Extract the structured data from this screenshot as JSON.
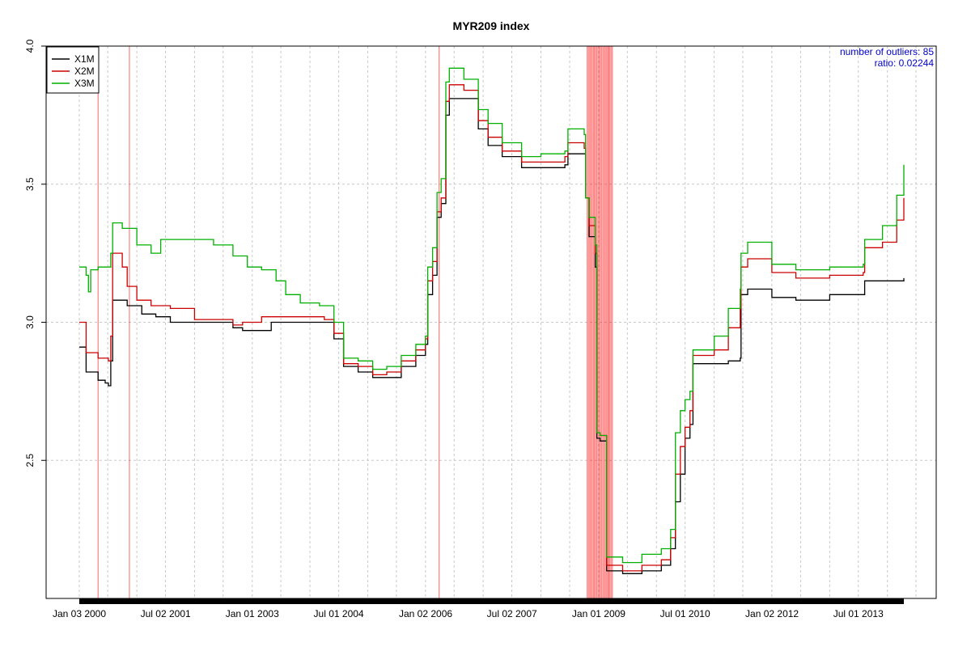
{
  "chart_data": {
    "type": "line",
    "title": "MYR209 index",
    "xlabel": "",
    "ylabel": "",
    "ylim": [
      2.0,
      4.0
    ],
    "y_ticks": [
      2.5,
      3.0,
      3.5,
      4.0
    ],
    "y_tick_labels": [
      "2.5",
      "3.0",
      "3.5",
      "4.0"
    ],
    "x_range": [
      "2000-01-03",
      "2014-04-15"
    ],
    "x_ticks": [
      {
        "date": "2000-01-03",
        "label": "Jan 03 2000"
      },
      {
        "date": "2001-07-02",
        "label": "Jul 02 2001"
      },
      {
        "date": "2003-01-01",
        "label": "Jan 01 2003"
      },
      {
        "date": "2004-07-01",
        "label": "Jul 01 2004"
      },
      {
        "date": "2006-01-02",
        "label": "Jan 02 2006"
      },
      {
        "date": "2007-07-02",
        "label": "Jul 02 2007"
      },
      {
        "date": "2009-01-01",
        "label": "Jan 01 2009"
      },
      {
        "date": "2010-07-01",
        "label": "Jul 01 2010"
      },
      {
        "date": "2012-01-02",
        "label": "Jan 02 2012"
      },
      {
        "date": "2013-07-01",
        "label": "Jul 01 2013"
      }
    ],
    "grid": true,
    "legend_position": "top-left",
    "annotation": {
      "line1": "number of outliers:  85",
      "line2": "ratio:  0.02244",
      "color": "#0000cc"
    },
    "outlier_color": "#ff0000",
    "outlier_dates": [
      "2000-05-01",
      "2000-11-15",
      "2006-03-28",
      "2008-10-20",
      "2008-10-28",
      "2008-11-05",
      "2008-11-12",
      "2008-11-20",
      "2008-11-28",
      "2008-12-05",
      "2008-12-12",
      "2008-12-20",
      "2008-12-28",
      "2009-01-05",
      "2009-01-12",
      "2009-01-20",
      "2009-01-28",
      "2009-02-05",
      "2009-02-12",
      "2009-02-20",
      "2009-02-28",
      "2009-03-05",
      "2009-03-12",
      "2009-03-20",
      "2009-03-28"
    ],
    "series": [
      {
        "name": "X1M",
        "color": "#000000",
        "points": [
          [
            "2000-01-03",
            2.91
          ],
          [
            "2000-02-15",
            2.82
          ],
          [
            "2000-05-01",
            2.79
          ],
          [
            "2000-06-15",
            2.78
          ],
          [
            "2000-07-05",
            2.77
          ],
          [
            "2000-07-20",
            2.86
          ],
          [
            "2000-08-01",
            3.08
          ],
          [
            "2000-11-01",
            3.06
          ],
          [
            "2001-02-01",
            3.03
          ],
          [
            "2001-05-01",
            3.02
          ],
          [
            "2001-08-01",
            3.0
          ],
          [
            "2002-09-01",
            2.98
          ],
          [
            "2002-11-01",
            2.97
          ],
          [
            "2003-05-01",
            3.0
          ],
          [
            "2004-04-01",
            3.0
          ],
          [
            "2004-06-01",
            2.94
          ],
          [
            "2004-08-01",
            2.84
          ],
          [
            "2004-11-01",
            2.82
          ],
          [
            "2005-02-01",
            2.8
          ],
          [
            "2005-05-01",
            2.8
          ],
          [
            "2005-08-01",
            2.84
          ],
          [
            "2005-11-01",
            2.88
          ],
          [
            "2006-01-01",
            2.92
          ],
          [
            "2006-01-15",
            3.1
          ],
          [
            "2006-02-15",
            3.17
          ],
          [
            "2006-03-15",
            3.38
          ],
          [
            "2006-04-10",
            3.43
          ],
          [
            "2006-05-10",
            3.75
          ],
          [
            "2006-06-01",
            3.81
          ],
          [
            "2006-09-01",
            3.81
          ],
          [
            "2006-12-01",
            3.7
          ],
          [
            "2007-02-01",
            3.64
          ],
          [
            "2007-05-01",
            3.6
          ],
          [
            "2007-09-01",
            3.56
          ],
          [
            "2008-01-01",
            3.56
          ],
          [
            "2008-06-01",
            3.57
          ],
          [
            "2008-06-20",
            3.61
          ],
          [
            "2008-10-01",
            3.61
          ],
          [
            "2008-10-10",
            3.45
          ],
          [
            "2008-11-01",
            3.31
          ],
          [
            "2008-12-10",
            3.2
          ],
          [
            "2008-12-20",
            2.58
          ],
          [
            "2009-01-10",
            2.57
          ],
          [
            "2009-02-20",
            2.1
          ],
          [
            "2009-06-01",
            2.09
          ],
          [
            "2009-10-01",
            2.1
          ],
          [
            "2010-02-01",
            2.12
          ],
          [
            "2010-04-01",
            2.18
          ],
          [
            "2010-05-01",
            2.35
          ],
          [
            "2010-06-01",
            2.45
          ],
          [
            "2010-07-01",
            2.58
          ],
          [
            "2010-08-01",
            2.63
          ],
          [
            "2010-08-20",
            2.85
          ],
          [
            "2011-01-01",
            2.85
          ],
          [
            "2011-04-01",
            2.86
          ],
          [
            "2011-06-15",
            2.87
          ],
          [
            "2011-06-20",
            3.1
          ],
          [
            "2011-08-01",
            3.12
          ],
          [
            "2012-01-01",
            3.09
          ],
          [
            "2012-06-01",
            3.08
          ],
          [
            "2013-01-01",
            3.1
          ],
          [
            "2013-08-01",
            3.1
          ],
          [
            "2013-08-10",
            3.15
          ],
          [
            "2014-04-15",
            3.16
          ]
        ]
      },
      {
        "name": "X2M",
        "color": "#cc0000",
        "points": [
          [
            "2000-01-03",
            3.0
          ],
          [
            "2000-02-15",
            2.89
          ],
          [
            "2000-05-01",
            2.87
          ],
          [
            "2000-07-05",
            2.86
          ],
          [
            "2000-07-20",
            2.95
          ],
          [
            "2000-08-01",
            3.25
          ],
          [
            "2000-10-01",
            3.2
          ],
          [
            "2000-11-01",
            3.13
          ],
          [
            "2001-01-01",
            3.08
          ],
          [
            "2001-04-01",
            3.06
          ],
          [
            "2001-08-01",
            3.05
          ],
          [
            "2002-01-01",
            3.01
          ],
          [
            "2002-09-01",
            2.99
          ],
          [
            "2002-11-01",
            3.0
          ],
          [
            "2003-03-01",
            3.02
          ],
          [
            "2004-04-01",
            3.01
          ],
          [
            "2004-06-01",
            2.96
          ],
          [
            "2004-08-01",
            2.85
          ],
          [
            "2004-11-01",
            2.84
          ],
          [
            "2005-02-01",
            2.81
          ],
          [
            "2005-05-01",
            2.82
          ],
          [
            "2005-08-01",
            2.86
          ],
          [
            "2005-11-01",
            2.9
          ],
          [
            "2006-01-01",
            2.94
          ],
          [
            "2006-01-15",
            3.15
          ],
          [
            "2006-02-15",
            3.22
          ],
          [
            "2006-03-15",
            3.4
          ],
          [
            "2006-04-10",
            3.45
          ],
          [
            "2006-05-10",
            3.8
          ],
          [
            "2006-06-01",
            3.86
          ],
          [
            "2006-09-01",
            3.84
          ],
          [
            "2006-12-01",
            3.73
          ],
          [
            "2007-02-01",
            3.67
          ],
          [
            "2007-05-01",
            3.62
          ],
          [
            "2007-09-01",
            3.58
          ],
          [
            "2008-01-01",
            3.58
          ],
          [
            "2008-06-01",
            3.6
          ],
          [
            "2008-06-20",
            3.65
          ],
          [
            "2008-10-01",
            3.63
          ],
          [
            "2008-10-10",
            3.45
          ],
          [
            "2008-11-01",
            3.35
          ],
          [
            "2008-12-10",
            3.25
          ],
          [
            "2008-12-20",
            2.6
          ],
          [
            "2009-01-10",
            2.59
          ],
          [
            "2009-02-20",
            2.12
          ],
          [
            "2009-06-01",
            2.1
          ],
          [
            "2009-10-01",
            2.12
          ],
          [
            "2010-02-01",
            2.14
          ],
          [
            "2010-04-01",
            2.22
          ],
          [
            "2010-05-01",
            2.45
          ],
          [
            "2010-06-01",
            2.55
          ],
          [
            "2010-07-01",
            2.62
          ],
          [
            "2010-08-01",
            2.68
          ],
          [
            "2010-08-20",
            2.88
          ],
          [
            "2011-01-01",
            2.9
          ],
          [
            "2011-04-01",
            2.98
          ],
          [
            "2011-06-15",
            3.05
          ],
          [
            "2011-06-20",
            3.2
          ],
          [
            "2011-08-01",
            3.23
          ],
          [
            "2012-01-01",
            3.18
          ],
          [
            "2012-06-01",
            3.16
          ],
          [
            "2013-01-01",
            3.17
          ],
          [
            "2013-08-01",
            3.18
          ],
          [
            "2013-08-10",
            3.27
          ],
          [
            "2013-12-01",
            3.29
          ],
          [
            "2014-03-01",
            3.37
          ],
          [
            "2014-04-15",
            3.45
          ]
        ]
      },
      {
        "name": "X3M",
        "color": "#00b000",
        "points": [
          [
            "2000-01-03",
            3.2
          ],
          [
            "2000-02-15",
            3.17
          ],
          [
            "2000-03-01",
            3.11
          ],
          [
            "2000-03-15",
            3.19
          ],
          [
            "2000-05-01",
            3.2
          ],
          [
            "2000-07-05",
            3.2
          ],
          [
            "2000-07-20",
            3.25
          ],
          [
            "2000-08-01",
            3.36
          ],
          [
            "2000-10-01",
            3.34
          ],
          [
            "2001-01-01",
            3.28
          ],
          [
            "2001-04-01",
            3.25
          ],
          [
            "2001-06-01",
            3.3
          ],
          [
            "2002-01-01",
            3.3
          ],
          [
            "2002-05-01",
            3.28
          ],
          [
            "2002-09-01",
            3.24
          ],
          [
            "2002-11-01",
            3.24
          ],
          [
            "2002-12-01",
            3.2
          ],
          [
            "2003-03-01",
            3.19
          ],
          [
            "2003-06-01",
            3.15
          ],
          [
            "2003-08-01",
            3.1
          ],
          [
            "2003-11-01",
            3.07
          ],
          [
            "2004-03-01",
            3.06
          ],
          [
            "2004-06-01",
            3.0
          ],
          [
            "2004-08-01",
            2.87
          ],
          [
            "2004-11-01",
            2.86
          ],
          [
            "2005-02-01",
            2.83
          ],
          [
            "2005-05-01",
            2.84
          ],
          [
            "2005-08-01",
            2.88
          ],
          [
            "2005-11-01",
            2.92
          ],
          [
            "2006-01-01",
            2.95
          ],
          [
            "2006-01-15",
            3.2
          ],
          [
            "2006-02-15",
            3.27
          ],
          [
            "2006-03-15",
            3.47
          ],
          [
            "2006-04-10",
            3.52
          ],
          [
            "2006-05-10",
            3.87
          ],
          [
            "2006-06-01",
            3.92
          ],
          [
            "2006-09-01",
            3.88
          ],
          [
            "2006-12-01",
            3.77
          ],
          [
            "2007-02-01",
            3.72
          ],
          [
            "2007-05-01",
            3.65
          ],
          [
            "2007-09-01",
            3.6
          ],
          [
            "2008-01-01",
            3.61
          ],
          [
            "2008-06-01",
            3.62
          ],
          [
            "2008-06-20",
            3.7
          ],
          [
            "2008-09-01",
            3.7
          ],
          [
            "2008-10-01",
            3.68
          ],
          [
            "2008-10-10",
            3.45
          ],
          [
            "2008-11-01",
            3.38
          ],
          [
            "2008-12-10",
            3.28
          ],
          [
            "2008-12-20",
            2.6
          ],
          [
            "2009-01-10",
            2.59
          ],
          [
            "2009-02-20",
            2.15
          ],
          [
            "2009-06-01",
            2.13
          ],
          [
            "2009-10-01",
            2.16
          ],
          [
            "2010-02-01",
            2.18
          ],
          [
            "2010-04-01",
            2.25
          ],
          [
            "2010-05-01",
            2.6
          ],
          [
            "2010-06-01",
            2.68
          ],
          [
            "2010-07-01",
            2.72
          ],
          [
            "2010-08-01",
            2.75
          ],
          [
            "2010-08-20",
            2.9
          ],
          [
            "2011-01-01",
            2.95
          ],
          [
            "2011-04-01",
            3.05
          ],
          [
            "2011-06-15",
            3.12
          ],
          [
            "2011-06-20",
            3.25
          ],
          [
            "2011-08-01",
            3.29
          ],
          [
            "2012-01-01",
            3.21
          ],
          [
            "2012-06-01",
            3.19
          ],
          [
            "2013-01-01",
            3.2
          ],
          [
            "2013-08-01",
            3.21
          ],
          [
            "2013-08-10",
            3.3
          ],
          [
            "2013-12-01",
            3.35
          ],
          [
            "2014-03-01",
            3.46
          ],
          [
            "2014-04-15",
            3.57
          ]
        ]
      }
    ]
  }
}
